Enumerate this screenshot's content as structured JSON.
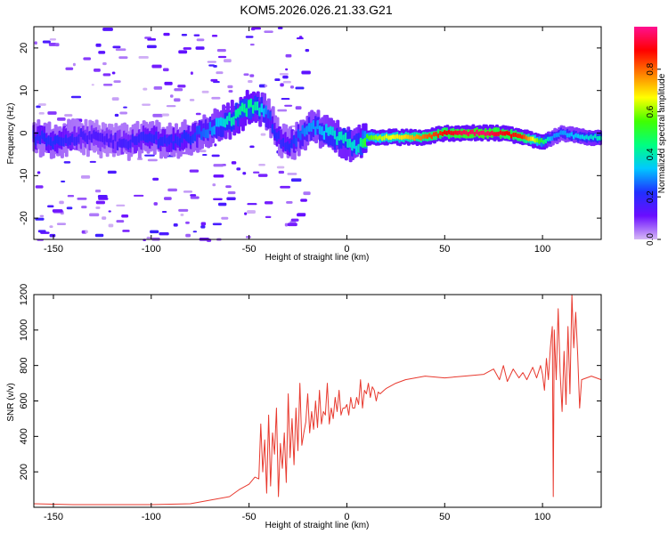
{
  "title": "KOM5.2026.026.21.33.G21",
  "chart_data": [
    {
      "type": "heatmap",
      "xlabel": "Height of straight line (km)",
      "ylabel": "Frequency (Hz)",
      "xlim": [
        -160,
        130
      ],
      "ylim": [
        -25,
        25
      ],
      "xticks": [
        -150,
        -100,
        -50,
        0,
        50,
        100
      ],
      "yticks": [
        20,
        10,
        0,
        -10,
        -20
      ],
      "colorbar": {
        "label": "Normalized spectral amplitude",
        "range": [
          0,
          1
        ],
        "ticks": [
          0.0,
          0.2,
          0.4,
          0.6,
          0.8
        ],
        "colors": [
          "#d6b8f5",
          "#6a0dff",
          "#2030ff",
          "#00c8ff",
          "#00ff80",
          "#40ff00",
          "#ffff00",
          "#ff8000",
          "#ff0000",
          "#ff1090"
        ]
      },
      "ridge": {
        "x": [
          -160,
          -150,
          -140,
          -130,
          -120,
          -110,
          -100,
          -90,
          -80,
          -70,
          -60,
          -50,
          -45,
          -40,
          -35,
          -30,
          -25,
          -20,
          -15,
          -10,
          -5,
          0,
          5,
          10,
          20,
          30,
          40,
          50,
          60,
          70,
          80,
          90,
          100,
          105,
          110,
          120,
          130
        ],
        "frequency": [
          -1,
          -2,
          -1,
          -1,
          -2,
          -2,
          -1,
          -2,
          -1,
          1,
          3,
          6,
          6,
          4,
          -1,
          -3,
          -1,
          1,
          1,
          0,
          -1,
          -2,
          -3,
          -1,
          -1,
          -1,
          -1,
          0,
          0,
          0,
          0,
          -1,
          -2,
          -1,
          0,
          -1,
          -1
        ],
        "amplitude": [
          0.2,
          0.22,
          0.18,
          0.15,
          0.15,
          0.18,
          0.2,
          0.2,
          0.22,
          0.28,
          0.4,
          0.45,
          0.4,
          0.25,
          0.2,
          0.2,
          0.25,
          0.3,
          0.3,
          0.35,
          0.38,
          0.4,
          0.35,
          0.55,
          0.65,
          0.7,
          0.8,
          0.88,
          0.95,
          0.97,
          0.9,
          0.85,
          0.5,
          0.3,
          0.3,
          0.35,
          0.4
        ]
      }
    },
    {
      "type": "line",
      "xlabel": "Height of straight line (km)",
      "ylabel": "SNR (v/v)",
      "xlim": [
        -160,
        130
      ],
      "ylim": [
        0,
        1200
      ],
      "xticks": [
        -150,
        -100,
        -50,
        0,
        50,
        100
      ],
      "yticks": [
        200,
        400,
        600,
        800,
        1000,
        1200
      ],
      "series": [
        {
          "name": "SNR",
          "color": "#e8392e",
          "x": [
            -160,
            -140,
            -120,
            -100,
            -80,
            -70,
            -60,
            -55,
            -50,
            -47,
            -45,
            -44,
            -43,
            -42,
            -41,
            -40,
            -39,
            -38,
            -37,
            -36,
            -35,
            -34,
            -33,
            -32,
            -31,
            -30,
            -29,
            -28,
            -27,
            -26,
            -25,
            -24,
            -23,
            -22,
            -21,
            -20,
            -19,
            -18,
            -17,
            -16,
            -15,
            -14,
            -13,
            -12,
            -11,
            -10,
            -9,
            -8,
            -7,
            -6,
            -5,
            -4,
            -3,
            -2,
            -1,
            0,
            1,
            2,
            3,
            4,
            5,
            6,
            7,
            8,
            9,
            10,
            11,
            12,
            13,
            14,
            15,
            16,
            17,
            18,
            19,
            20,
            25,
            30,
            35,
            40,
            50,
            60,
            70,
            75,
            78,
            80,
            82,
            85,
            88,
            90,
            92,
            95,
            97,
            99,
            100,
            101,
            102,
            103,
            104,
            105,
            105.5,
            106,
            107,
            108,
            109,
            110,
            111,
            112,
            113,
            114,
            115,
            116,
            117,
            118,
            119,
            120,
            125,
            130
          ],
          "y": [
            20,
            15,
            15,
            15,
            20,
            40,
            60,
            100,
            130,
            170,
            160,
            470,
            200,
            380,
            80,
            520,
            120,
            420,
            300,
            560,
            60,
            360,
            220,
            420,
            140,
            640,
            280,
            500,
            240,
            560,
            320,
            700,
            350,
            420,
            480,
            640,
            420,
            540,
            440,
            600,
            450,
            660,
            470,
            540,
            520,
            700,
            470,
            560,
            500,
            620,
            540,
            660,
            520,
            560,
            560,
            580,
            520,
            620,
            560,
            560,
            620,
            580,
            720,
            560,
            660,
            640,
            700,
            620,
            680,
            660,
            600,
            650,
            640,
            650,
            660,
            670,
            700,
            720,
            730,
            740,
            730,
            740,
            750,
            780,
            720,
            800,
            710,
            780,
            730,
            760,
            720,
            790,
            730,
            800,
            750,
            660,
            840,
            720,
            900,
            1020,
            60,
            1000,
            720,
            1120,
            760,
            540,
            880,
            580,
            1020,
            640,
            1200,
            900,
            1100,
            860,
            560,
            720,
            740,
            720
          ]
        }
      ]
    }
  ]
}
